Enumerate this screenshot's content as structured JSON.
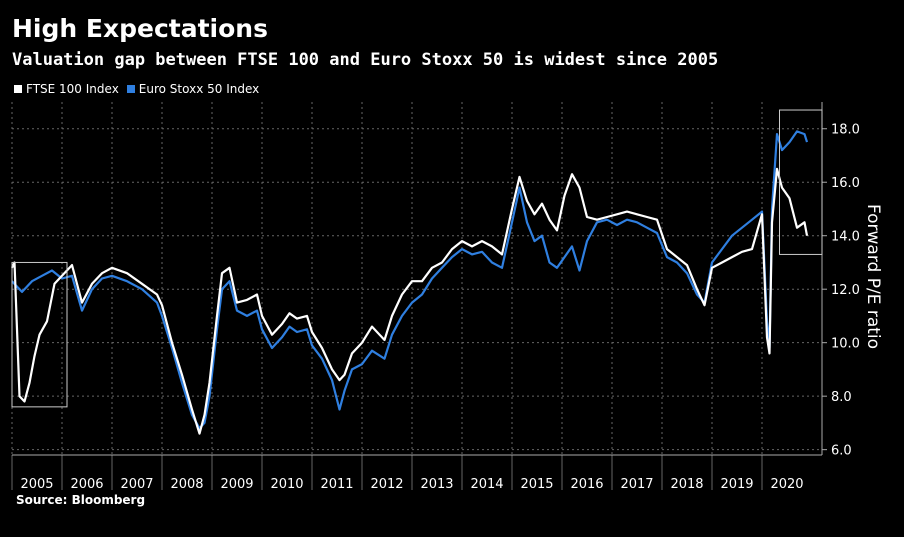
{
  "title": "High Expectations",
  "subtitle": "Valuation gap between FTSE 100 and Euro Stoxx 50 is widest since 2005",
  "source": "Source: Bloomberg",
  "colors": {
    "background": "#000000",
    "ftse": "#ffffff",
    "stoxx": "#2f7fe0",
    "grid": "#666666"
  },
  "chart_data": {
    "type": "line",
    "title": "High Expectations",
    "subtitle": "Valuation gap between FTSE 100 and Euro Stoxx 50 is widest since 2005",
    "xlabel": "",
    "ylabel": "Forward P/E ratio",
    "xlim": [
      2005.0,
      2021.2
    ],
    "ylim": [
      5.8,
      19.0
    ],
    "x_ticks": [
      "2005",
      "2006",
      "2007",
      "2008",
      "2009",
      "2010",
      "2011",
      "2012",
      "2013",
      "2014",
      "2015",
      "2016",
      "2017",
      "2018",
      "2019",
      "2020"
    ],
    "y_ticks": [
      "6.0",
      "8.0",
      "10.0",
      "12.0",
      "14.0",
      "16.0",
      "18.0"
    ],
    "y_tick_values": [
      6,
      8,
      10,
      12,
      14,
      16,
      18
    ],
    "grid": true,
    "legend_position": "top-left",
    "series": [
      {
        "name": "FTSE 100 Index",
        "color": "#ffffff",
        "x": [
          2005.0,
          2005.05,
          2005.1,
          2005.15,
          2005.25,
          2005.35,
          2005.45,
          2005.55,
          2005.7,
          2005.85,
          2006.0,
          2006.2,
          2006.4,
          2006.6,
          2006.8,
          2007.0,
          2007.3,
          2007.6,
          2007.9,
          2008.0,
          2008.2,
          2008.4,
          2008.6,
          2008.75,
          2008.85,
          2008.95,
          2009.1,
          2009.2,
          2009.35,
          2009.5,
          2009.7,
          2009.9,
          2010.0,
          2010.2,
          2010.4,
          2010.55,
          2010.7,
          2010.9,
          2011.0,
          2011.2,
          2011.4,
          2011.55,
          2011.65,
          2011.8,
          2012.0,
          2012.2,
          2012.45,
          2012.6,
          2012.8,
          2013.0,
          2013.2,
          2013.4,
          2013.6,
          2013.8,
          2014.0,
          2014.2,
          2014.4,
          2014.6,
          2014.8,
          2015.0,
          2015.15,
          2015.3,
          2015.45,
          2015.6,
          2015.75,
          2015.9,
          2016.05,
          2016.2,
          2016.35,
          2016.5,
          2016.7,
          2016.9,
          2017.1,
          2017.3,
          2017.5,
          2017.7,
          2017.9,
          2018.1,
          2018.3,
          2018.5,
          2018.7,
          2018.85,
          2019.0,
          2019.2,
          2019.4,
          2019.6,
          2019.8,
          2020.0,
          2020.1,
          2020.15,
          2020.2,
          2020.3,
          2020.4,
          2020.55,
          2020.7,
          2020.85,
          2020.9
        ],
        "values": [
          12.8,
          13.0,
          10.5,
          8.0,
          7.8,
          8.5,
          9.5,
          10.3,
          10.8,
          12.2,
          12.5,
          12.9,
          11.5,
          12.2,
          12.6,
          12.8,
          12.6,
          12.2,
          11.8,
          11.4,
          10.0,
          8.8,
          7.5,
          6.6,
          7.3,
          8.5,
          11.0,
          12.6,
          12.8,
          11.5,
          11.6,
          11.8,
          11.0,
          10.3,
          10.7,
          11.1,
          10.9,
          11.0,
          10.4,
          9.8,
          9.0,
          8.6,
          8.8,
          9.6,
          10.0,
          10.6,
          10.1,
          11.0,
          11.8,
          12.3,
          12.3,
          12.8,
          13.0,
          13.5,
          13.8,
          13.6,
          13.8,
          13.6,
          13.3,
          15.0,
          16.2,
          15.3,
          14.8,
          15.2,
          14.6,
          14.2,
          15.5,
          16.3,
          15.8,
          14.7,
          14.6,
          14.7,
          14.8,
          14.9,
          14.8,
          14.7,
          14.6,
          13.5,
          13.2,
          12.9,
          12.0,
          11.4,
          12.8,
          13.0,
          13.2,
          13.4,
          13.5,
          14.8,
          10.2,
          9.6,
          14.5,
          16.5,
          15.8,
          15.4,
          14.3,
          14.5,
          14.0
        ]
      },
      {
        "name": "Euro Stoxx 50 Index",
        "color": "#2f7fe0",
        "x": [
          2005.0,
          2005.2,
          2005.4,
          2005.6,
          2005.8,
          2006.0,
          2006.2,
          2006.4,
          2006.6,
          2006.8,
          2007.0,
          2007.3,
          2007.6,
          2007.9,
          2008.0,
          2008.2,
          2008.4,
          2008.6,
          2008.75,
          2008.85,
          2008.95,
          2009.1,
          2009.2,
          2009.35,
          2009.5,
          2009.7,
          2009.9,
          2010.0,
          2010.2,
          2010.4,
          2010.55,
          2010.7,
          2010.9,
          2011.0,
          2011.2,
          2011.4,
          2011.55,
          2011.65,
          2011.8,
          2012.0,
          2012.2,
          2012.45,
          2012.6,
          2012.8,
          2013.0,
          2013.2,
          2013.4,
          2013.6,
          2013.8,
          2014.0,
          2014.2,
          2014.4,
          2014.6,
          2014.8,
          2015.0,
          2015.15,
          2015.3,
          2015.45,
          2015.6,
          2015.75,
          2015.9,
          2016.05,
          2016.2,
          2016.35,
          2016.5,
          2016.7,
          2016.9,
          2017.1,
          2017.3,
          2017.5,
          2017.7,
          2017.9,
          2018.1,
          2018.3,
          2018.5,
          2018.7,
          2018.85,
          2019.0,
          2019.2,
          2019.4,
          2019.6,
          2019.8,
          2020.0,
          2020.1,
          2020.15,
          2020.2,
          2020.3,
          2020.4,
          2020.55,
          2020.7,
          2020.85,
          2020.9
        ],
        "values": [
          12.3,
          11.9,
          12.3,
          12.5,
          12.7,
          12.4,
          12.5,
          11.2,
          12.0,
          12.4,
          12.5,
          12.3,
          12.0,
          11.5,
          11.0,
          9.8,
          8.5,
          7.3,
          6.8,
          7.0,
          8.0,
          10.5,
          12.0,
          12.3,
          11.2,
          11.0,
          11.2,
          10.5,
          9.8,
          10.2,
          10.6,
          10.4,
          10.5,
          9.9,
          9.4,
          8.6,
          7.5,
          8.2,
          9.0,
          9.2,
          9.7,
          9.4,
          10.3,
          11.0,
          11.5,
          11.8,
          12.4,
          12.8,
          13.2,
          13.5,
          13.3,
          13.4,
          13.0,
          12.8,
          14.5,
          15.8,
          14.5,
          13.8,
          14.0,
          13.0,
          12.8,
          13.2,
          13.6,
          12.7,
          13.8,
          14.5,
          14.6,
          14.4,
          14.6,
          14.5,
          14.3,
          14.1,
          13.2,
          13.0,
          12.6,
          11.8,
          11.5,
          13.0,
          13.5,
          14.0,
          14.3,
          14.6,
          14.9,
          10.8,
          9.8,
          15.0,
          17.8,
          17.2,
          17.5,
          17.9,
          17.8,
          17.5
        ]
      }
    ],
    "annotations": [
      "box-2005-gap",
      "box-2020-gap"
    ]
  }
}
